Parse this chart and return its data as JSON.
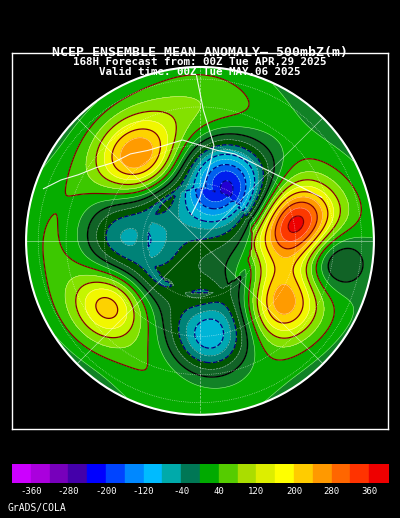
{
  "title_line1": "NCEP ENSEMBLE MEAN ANOMALY– 500mbZ(m)",
  "title_line2": "168H Forecast from: 00Z Tue APR,29 2025",
  "title_line3": "Valid time: 00Z Tue MAY,06 2025",
  "credit": "GrADS/COLA",
  "background_color": "#000000",
  "map_bg_color": "#1a6b3c",
  "colorbar_values": [
    -360,
    -280,
    -200,
    -120,
    -40,
    40,
    120,
    200,
    280,
    360
  ],
  "colorbar_colors": [
    "#cc00ff",
    "#9900cc",
    "#6600aa",
    "#0000ff",
    "#0066ff",
    "#00ccff",
    "#009999",
    "#006600",
    "#00cc00",
    "#66ff00",
    "#ccff00",
    "#ffff00",
    "#ffcc00",
    "#ff9900",
    "#ff6600",
    "#ff0000"
  ],
  "contour_colors_neg": "#000080",
  "contour_colors_pos": "#800000",
  "grid_color": "#ffffff",
  "coast_color": "#ffffff",
  "title_color": "#ffffff",
  "title_fontsize": 11,
  "subtitle_fontsize": 9,
  "colorbar_fontsize": 8
}
